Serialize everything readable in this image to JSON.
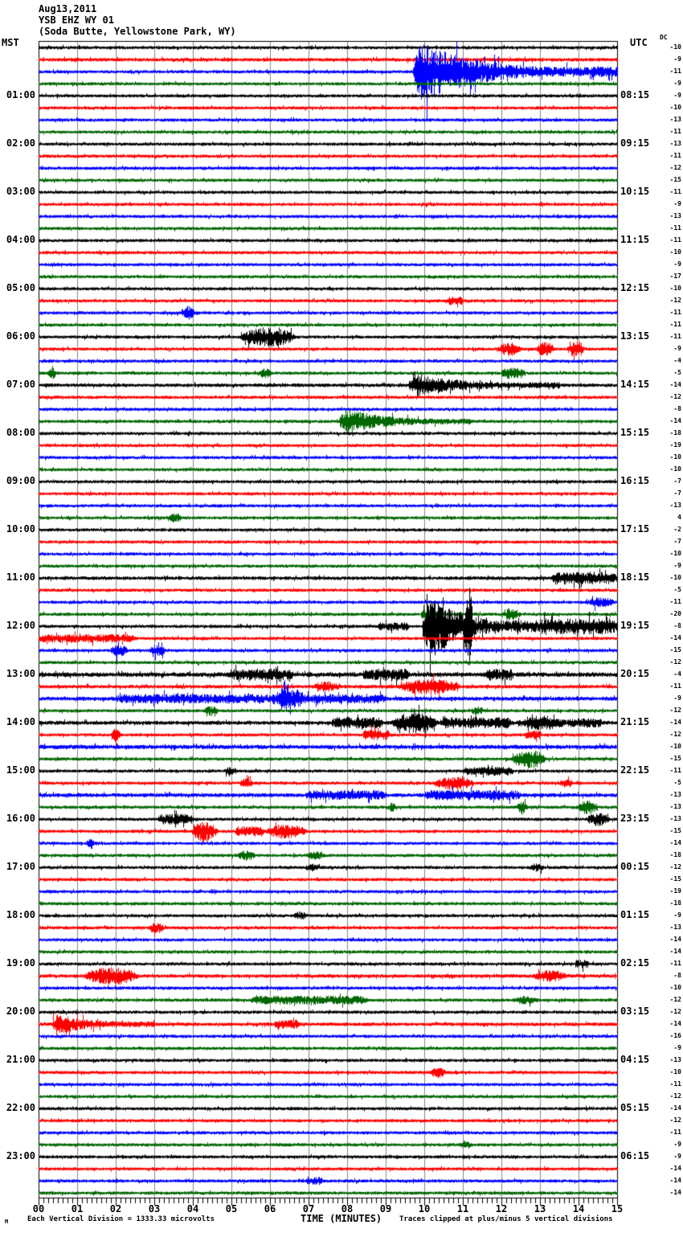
{
  "header": {
    "date": "Aug13,2011",
    "station": "YSB EHZ WY 01",
    "location": "(Soda Butte, Yellowstone Park, WY)"
  },
  "axis": {
    "left_header": "MST",
    "right_header": "UTC",
    "dc_header": "DC",
    "x_title": "TIME (MINUTES)",
    "tick_labels": [
      "00",
      "01",
      "02",
      "03",
      "04",
      "05",
      "06",
      "07",
      "08",
      "09",
      "10",
      "11",
      "12",
      "13",
      "14",
      "15"
    ]
  },
  "footer": {
    "left": "Each Vertical Division = 1333.33 microvolts",
    "right": "Traces clipped at plus/minus 5 vertical divisions",
    "mark": "M"
  },
  "chart_data": {
    "type": "line",
    "title": "YSB EHZ WY 01 (Soda Butte, Yellowstone Park, WY) Aug13,2011 helicorder",
    "xlabel": "TIME (MINUTES)",
    "x_range_minutes": [
      0,
      15
    ],
    "minutes_per_row": 15,
    "rows_total": 96,
    "grid_color": "#888888",
    "colors": {
      "k": "#000000",
      "r": "#ff0000",
      "b": "#0000ff",
      "g": "#006600"
    },
    "note_scale": "Each Vertical Division = 1333.33 microvolts",
    "note_clip": "Traces clipped at plus/minus 5 vertical divisions",
    "rows": [
      {
        "c": "k",
        "dc": -10
      },
      {
        "c": "r",
        "dc": -9,
        "n": 1.7
      },
      {
        "c": "b",
        "dc": -11,
        "ev": [
          [
            9.7,
            15,
            30,
            "q"
          ]
        ]
      },
      {
        "c": "g",
        "dc": -9
      },
      {
        "c": "k",
        "mst": "01:00",
        "utc": "08:15",
        "dc": -9
      },
      {
        "c": "r",
        "dc": -10
      },
      {
        "c": "b",
        "dc": -13
      },
      {
        "c": "g",
        "dc": -11
      },
      {
        "c": "k",
        "mst": "02:00",
        "utc": "09:15",
        "dc": -13
      },
      {
        "c": "r",
        "dc": -11
      },
      {
        "c": "b",
        "dc": -12
      },
      {
        "c": "g",
        "dc": -15
      },
      {
        "c": "k",
        "mst": "03:00",
        "utc": "10:15",
        "dc": -11
      },
      {
        "c": "r",
        "dc": -9
      },
      {
        "c": "b",
        "dc": -13
      },
      {
        "c": "g",
        "dc": -11
      },
      {
        "c": "k",
        "mst": "04:00",
        "utc": "11:15",
        "dc": -11
      },
      {
        "c": "r",
        "dc": -10
      },
      {
        "c": "b",
        "dc": -9
      },
      {
        "c": "g",
        "dc": -17
      },
      {
        "c": "k",
        "mst": "05:00",
        "utc": "12:15",
        "dc": -10
      },
      {
        "c": "r",
        "dc": -12,
        "ev": [
          [
            10.6,
            11.0,
            3,
            "p"
          ]
        ]
      },
      {
        "c": "b",
        "dc": -11,
        "ev": [
          [
            3.7,
            4.05,
            6,
            "b"
          ]
        ]
      },
      {
        "c": "g",
        "dc": -11
      },
      {
        "c": "k",
        "mst": "06:00",
        "utc": "13:15",
        "dc": -11,
        "ev": [
          [
            5.2,
            6.7,
            9,
            "b"
          ]
        ]
      },
      {
        "c": "r",
        "dc": -9,
        "ev": [
          [
            11.9,
            12.5,
            6,
            "b"
          ],
          [
            12.9,
            13.35,
            7,
            "b"
          ],
          [
            13.7,
            14.15,
            8,
            "b"
          ]
        ]
      },
      {
        "c": "b",
        "dc": -4
      },
      {
        "c": "g",
        "dc": -5,
        "ev": [
          [
            0.2,
            0.5,
            7,
            "s"
          ],
          [
            5.7,
            6.05,
            4,
            "b"
          ],
          [
            12.0,
            12.6,
            4,
            "p"
          ]
        ]
      },
      {
        "c": "k",
        "mst": "07:00",
        "utc": "14:15",
        "dc": -14,
        "n": 1.7,
        "ev": [
          [
            9.6,
            13.5,
            11,
            "q"
          ]
        ]
      },
      {
        "c": "r",
        "dc": -12
      },
      {
        "c": "b",
        "dc": -8
      },
      {
        "c": "g",
        "dc": -14,
        "ev": [
          [
            7.8,
            11.2,
            13,
            "q"
          ]
        ]
      },
      {
        "c": "k",
        "mst": "08:00",
        "utc": "15:15",
        "dc": -18
      },
      {
        "c": "r",
        "dc": -19
      },
      {
        "c": "b",
        "dc": -10
      },
      {
        "c": "g",
        "dc": -10
      },
      {
        "c": "k",
        "mst": "09:00",
        "utc": "16:15",
        "dc": -7
      },
      {
        "c": "r",
        "dc": -7
      },
      {
        "c": "b",
        "dc": -13
      },
      {
        "c": "g",
        "dc": 4,
        "ev": [
          [
            3.3,
            3.7,
            4,
            "b"
          ]
        ]
      },
      {
        "c": "k",
        "mst": "10:00",
        "utc": "17:15",
        "dc": -2
      },
      {
        "c": "r",
        "dc": -7
      },
      {
        "c": "b",
        "dc": -10
      },
      {
        "c": "g",
        "dc": -9
      },
      {
        "c": "k",
        "mst": "11:00",
        "utc": "18:15",
        "dc": -10,
        "n": 1.7,
        "ev": [
          [
            13.3,
            15,
            5,
            "p"
          ]
        ]
      },
      {
        "c": "r",
        "dc": -5
      },
      {
        "c": "b",
        "dc": -11,
        "ev": [
          [
            14.2,
            14.95,
            4,
            "b"
          ]
        ]
      },
      {
        "c": "g",
        "dc": -20,
        "ev": [
          [
            9.9,
            10.4,
            4,
            "p"
          ],
          [
            12.0,
            12.5,
            5,
            "b"
          ]
        ]
      },
      {
        "c": "k",
        "mst": "12:00",
        "utc": "19:15",
        "dc": -8,
        "ev": [
          [
            8.8,
            9.6,
            3,
            "p"
          ],
          [
            9.95,
            12.9,
            38,
            "q"
          ],
          [
            11.0,
            11.3,
            44,
            "s"
          ],
          [
            12.9,
            15,
            7,
            "p"
          ]
        ]
      },
      {
        "c": "r",
        "dc": -14,
        "ev": [
          [
            0,
            2.5,
            3,
            "p"
          ]
        ]
      },
      {
        "c": "b",
        "dc": -15,
        "ev": [
          [
            1.85,
            2.3,
            5,
            "b"
          ],
          [
            2.85,
            3.3,
            5,
            "b"
          ]
        ]
      },
      {
        "c": "g",
        "dc": -12
      },
      {
        "c": "k",
        "mst": "13:00",
        "utc": "20:15",
        "dc": -4,
        "n": 2.2,
        "ev": [
          [
            4.9,
            6.6,
            4,
            "p"
          ],
          [
            8.4,
            9.6,
            4,
            "p"
          ],
          [
            11.6,
            12.3,
            4,
            "p"
          ]
        ]
      },
      {
        "c": "r",
        "dc": -11,
        "n": 1.7,
        "ev": [
          [
            7.1,
            7.8,
            4,
            "b"
          ],
          [
            9.3,
            10.95,
            7,
            "b"
          ]
        ]
      },
      {
        "c": "b",
        "dc": -9,
        "n": 2.0,
        "ev": [
          [
            2,
            6,
            3,
            "p"
          ],
          [
            5.95,
            7.05,
            8,
            "b"
          ],
          [
            6.25,
            6.5,
            13,
            "s"
          ],
          [
            7.05,
            9,
            3,
            "p"
          ]
        ]
      },
      {
        "c": "g",
        "dc": -12,
        "ev": [
          [
            4.3,
            4.65,
            4,
            "b"
          ],
          [
            11.2,
            11.55,
            3,
            "b"
          ]
        ]
      },
      {
        "c": "k",
        "mst": "14:00",
        "utc": "21:15",
        "dc": -14,
        "n": 1.9,
        "ev": [
          [
            7.6,
            8.9,
            4,
            "p"
          ],
          [
            9.15,
            10.35,
            10,
            "b"
          ],
          [
            10.4,
            12.3,
            4,
            "p"
          ],
          [
            12.4,
            13.7,
            6,
            "b"
          ],
          [
            13.7,
            14.6,
            3,
            "p"
          ]
        ]
      },
      {
        "c": "r",
        "dc": -12,
        "ev": [
          [
            1.85,
            2.15,
            8,
            "s"
          ],
          [
            8.4,
            9.1,
            4,
            "p"
          ],
          [
            12.6,
            13.0,
            3,
            "p"
          ]
        ]
      },
      {
        "c": "b",
        "dc": -10,
        "n": 2.1
      },
      {
        "c": "g",
        "dc": -15,
        "ev": [
          [
            12.25,
            13.15,
            9,
            "b"
          ]
        ]
      },
      {
        "c": "k",
        "mst": "15:00",
        "utc": "22:15",
        "dc": -11,
        "ev": [
          [
            4.8,
            5.15,
            3,
            "b"
          ],
          [
            11.0,
            12.3,
            3,
            "p"
          ]
        ]
      },
      {
        "c": "r",
        "dc": -5,
        "ev": [
          [
            5.2,
            5.55,
            4,
            "b"
          ],
          [
            10.2,
            11.3,
            6,
            "b"
          ],
          [
            13.5,
            13.85,
            4,
            "b"
          ]
        ]
      },
      {
        "c": "b",
        "dc": -13,
        "n": 1.9,
        "ev": [
          [
            6.9,
            9.0,
            3,
            "p"
          ],
          [
            10.0,
            12.5,
            3.5,
            "p"
          ]
        ]
      },
      {
        "c": "g",
        "dc": -13,
        "ev": [
          [
            9.0,
            9.3,
            5,
            "s"
          ],
          [
            12.35,
            12.7,
            8,
            "s"
          ],
          [
            13.95,
            14.5,
            6,
            "b"
          ]
        ]
      },
      {
        "c": "k",
        "mst": "16:00",
        "utc": "23:15",
        "dc": -13,
        "ev": [
          [
            3.1,
            4.0,
            4,
            "p"
          ],
          [
            14.2,
            14.8,
            6,
            "b"
          ]
        ]
      },
      {
        "c": "r",
        "dc": -15,
        "ev": [
          [
            3.95,
            4.65,
            10,
            "b"
          ],
          [
            5.1,
            5.85,
            4,
            "p"
          ],
          [
            5.9,
            6.95,
            7,
            "b"
          ]
        ]
      },
      {
        "c": "b",
        "dc": -14,
        "ev": [
          [
            1.2,
            1.5,
            6,
            "s"
          ]
        ]
      },
      {
        "c": "g",
        "dc": -18,
        "ev": [
          [
            5.15,
            5.6,
            4,
            "b"
          ],
          [
            6.95,
            7.4,
            4,
            "b"
          ]
        ]
      },
      {
        "c": "k",
        "mst": "17:00",
        "utc": "00:15",
        "dc": -12,
        "ev": [
          [
            6.9,
            7.3,
            3,
            "b"
          ],
          [
            12.7,
            13.1,
            3,
            "b"
          ]
        ]
      },
      {
        "c": "r",
        "dc": -15
      },
      {
        "c": "b",
        "dc": -19
      },
      {
        "c": "g",
        "dc": -18
      },
      {
        "c": "k",
        "mst": "18:00",
        "utc": "01:15",
        "dc": -9,
        "ev": [
          [
            6.6,
            6.95,
            3,
            "b"
          ]
        ]
      },
      {
        "c": "r",
        "dc": -13,
        "ev": [
          [
            2.85,
            3.25,
            4,
            "b"
          ]
        ]
      },
      {
        "c": "b",
        "dc": -14
      },
      {
        "c": "g",
        "dc": -14
      },
      {
        "c": "k",
        "mst": "19:00",
        "utc": "02:15",
        "dc": -11,
        "ev": [
          [
            13.9,
            14.25,
            3,
            "p"
          ]
        ]
      },
      {
        "c": "r",
        "dc": -8,
        "n": 1.7,
        "ev": [
          [
            1.15,
            2.6,
            8,
            "b"
          ],
          [
            12.8,
            13.7,
            5,
            "b"
          ]
        ]
      },
      {
        "c": "b",
        "dc": -10
      },
      {
        "c": "g",
        "dc": -12,
        "ev": [
          [
            5.5,
            8.5,
            3,
            "p"
          ],
          [
            12.3,
            12.95,
            3,
            "b"
          ]
        ]
      },
      {
        "c": "k",
        "mst": "20:00",
        "utc": "03:15",
        "dc": -12
      },
      {
        "c": "r",
        "dc": -14,
        "n": 1.7,
        "ev": [
          [
            0.35,
            3.0,
            10,
            "q"
          ],
          [
            6.1,
            6.75,
            3,
            "p"
          ]
        ]
      },
      {
        "c": "b",
        "dc": -16
      },
      {
        "c": "g",
        "dc": -9
      },
      {
        "c": "k",
        "mst": "21:00",
        "utc": "04:15",
        "dc": -13
      },
      {
        "c": "r",
        "dc": -10,
        "ev": [
          [
            10.15,
            10.55,
            4,
            "b"
          ]
        ]
      },
      {
        "c": "b",
        "dc": -11
      },
      {
        "c": "g",
        "dc": -12
      },
      {
        "c": "k",
        "mst": "22:00",
        "utc": "05:15",
        "dc": -14
      },
      {
        "c": "r",
        "dc": -12
      },
      {
        "c": "b",
        "dc": -11
      },
      {
        "c": "g",
        "dc": -9,
        "ev": [
          [
            10.9,
            11.25,
            3,
            "b"
          ]
        ]
      },
      {
        "c": "k",
        "mst": "23:00",
        "utc": "06:15",
        "dc": -9
      },
      {
        "c": "r",
        "dc": -14
      },
      {
        "c": "b",
        "dc": -14,
        "ev": [
          [
            6.9,
            7.35,
            3,
            "p"
          ]
        ]
      },
      {
        "c": "g",
        "dc": -14
      }
    ]
  }
}
